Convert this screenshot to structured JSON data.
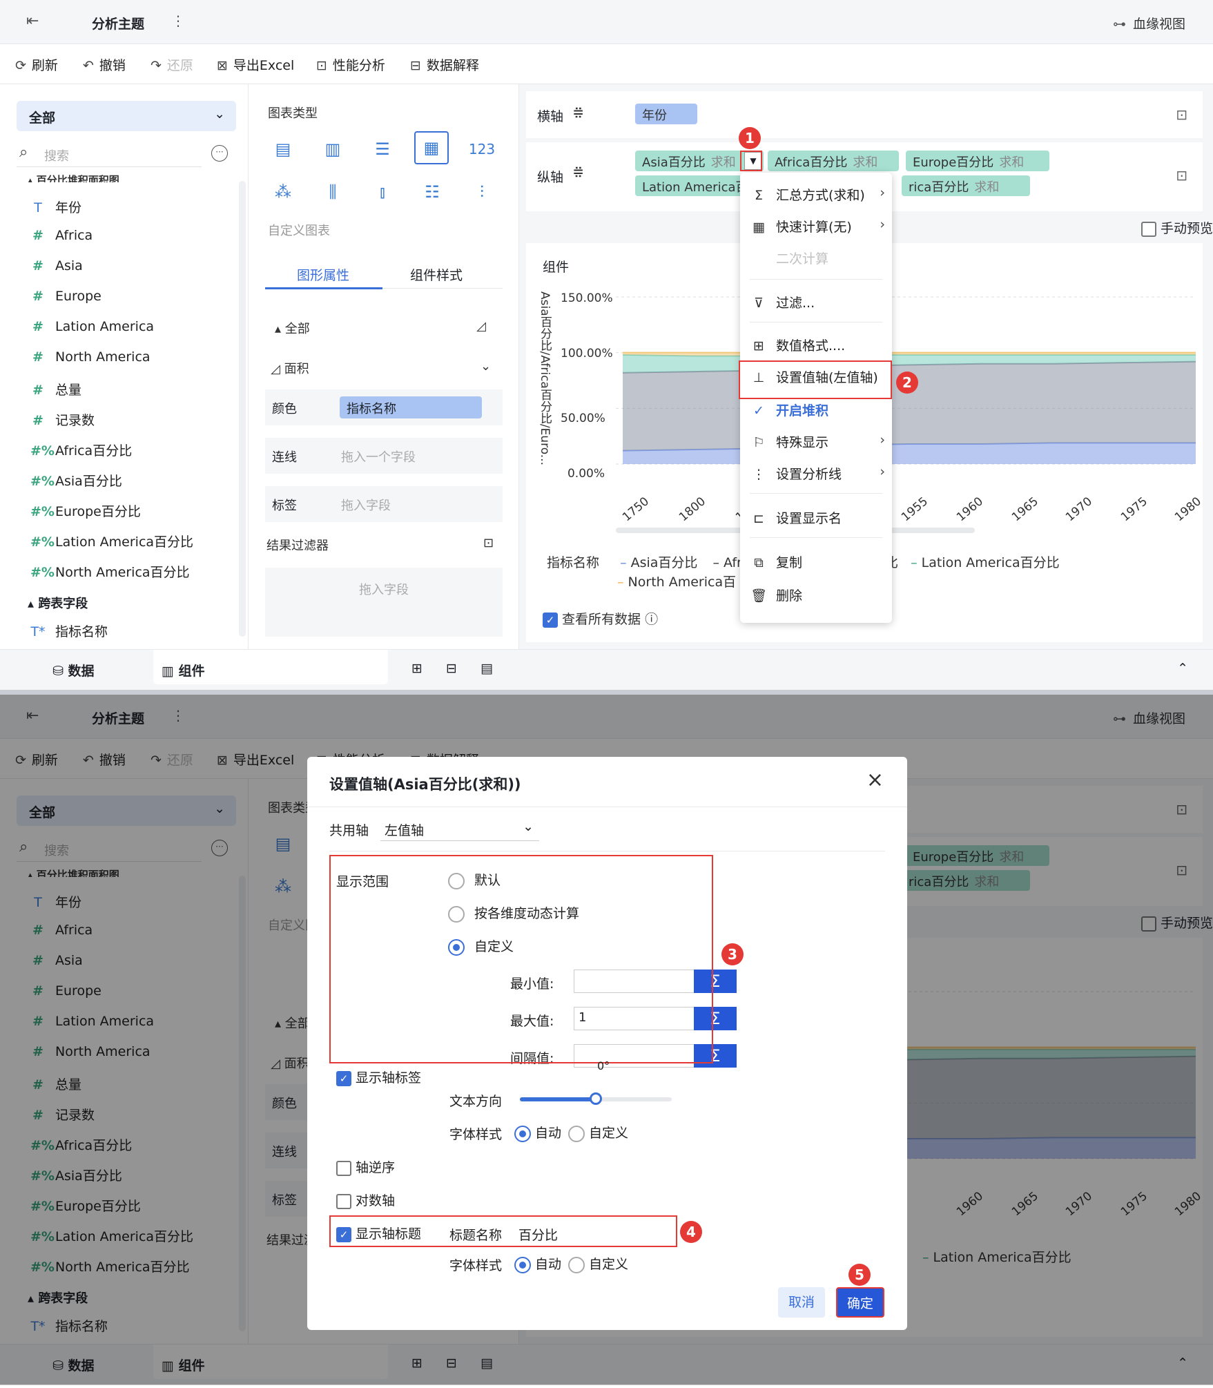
{
  "header": {
    "title": "分析主题",
    "lineage": "血缘视图"
  },
  "toolbar": {
    "refresh": "刷新",
    "undo": "撤销",
    "redo": "还原",
    "export": "导出Excel",
    "perf": "性能分析",
    "explain": "数据解释"
  },
  "left": {
    "select": "全部",
    "search_placeholder": "搜索",
    "partial_top": "百分比堆积面积图",
    "fields": [
      {
        "icon": "T",
        "label": "年份"
      },
      {
        "icon": "#",
        "label": "Africa"
      },
      {
        "icon": "#",
        "label": "Asia"
      },
      {
        "icon": "#",
        "label": "Europe"
      },
      {
        "icon": "#",
        "label": "Lation America"
      },
      {
        "icon": "#",
        "label": "North America"
      },
      {
        "icon": "#",
        "label": "总量"
      },
      {
        "icon": "#",
        "label": "记录数"
      },
      {
        "icon": "%",
        "label": "Africa百分比"
      },
      {
        "icon": "%",
        "label": "Asia百分比"
      },
      {
        "icon": "%",
        "label": "Europe百分比"
      },
      {
        "icon": "%",
        "label": "Lation America百分比"
      },
      {
        "icon": "%",
        "label": "North America百分比"
      }
    ],
    "cross_group": "跨表字段",
    "cross_field": "指标名称"
  },
  "mid": {
    "chart_type_label": "图表类型",
    "custom_chart": "自定义图表",
    "tab_shape": "图形属性",
    "tab_style": "组件样式",
    "all": "全部",
    "area": "面积",
    "color_label": "颜色",
    "color_value": "指标名称",
    "line_label": "连线",
    "line_ph": "拖入一个字段",
    "tag_label": "标签",
    "tag_ph": "拖入字段",
    "filter_label": "结果过滤器",
    "filter_ph": "拖入字段"
  },
  "axis": {
    "x_label": "横轴",
    "x_field": "年份",
    "y_label": "纵轴",
    "y_fields": [
      "Asia百分比",
      "Africa百分比",
      "Europe百分比",
      "Lation America百",
      "rica百分比"
    ],
    "agg": "求和",
    "manual_preview": "手动预览"
  },
  "chart": {
    "component_title": "组件",
    "ylabel": "Asia百分比/Africa百分比/Euro...",
    "yticks": [
      "150.00%",
      "100.00%",
      "50.00%",
      "0.00%"
    ],
    "xticks": [
      "1750",
      "1800",
      "18",
      "1955",
      "1960",
      "1965",
      "1970",
      "1975",
      "1980"
    ],
    "legend_title": "指标名称",
    "legend_items": [
      "Asia百分比",
      "Afr",
      "比",
      "Lation America百分比",
      "North America百"
    ],
    "view_all": "查看所有数据"
  },
  "chart_data": {
    "type": "area",
    "x": [
      "1750",
      "1800",
      "18",
      "1955",
      "1960",
      "1965",
      "1970",
      "1975",
      "1980"
    ],
    "ylim": [
      0,
      1.5
    ],
    "yticks": [
      "150.00%",
      "100.00%",
      "50.00%",
      "0.00%"
    ],
    "ylabel": "Asia百分比/Africa百分比/Euro...",
    "series": [
      {
        "name": "Asia百分比",
        "values": [
          0.12,
          0.13,
          0.14,
          0.17,
          0.18,
          0.18,
          0.19,
          0.19,
          0.19
        ],
        "color": "#7f9be6"
      },
      {
        "name": "Lation America百分比",
        "values": [
          0.82,
          0.83,
          0.84,
          0.88,
          0.89,
          0.9,
          0.9,
          0.91,
          0.92
        ],
        "color": "#8c93a3"
      },
      {
        "name": "North America百分比",
        "values": [
          0.98,
          0.97,
          0.97,
          0.98,
          0.98,
          0.98,
          0.98,
          0.98,
          0.98
        ],
        "color": "#7fd1bf"
      },
      {
        "name": "Europe百分比",
        "values": [
          1.0,
          1.0,
          1.0,
          1.0,
          1.0,
          1.0,
          1.0,
          1.0,
          1.0
        ],
        "color": "#f3c77a"
      }
    ]
  },
  "menu": {
    "items": [
      "汇总方式(求和)",
      "快速计算(无)",
      "二次计算",
      "过滤...",
      "数值格式....",
      "设置值轴(左值轴)",
      "开启堆积",
      "特殊显示",
      "设置分析线",
      "设置显示名",
      "复制",
      "删除"
    ]
  },
  "badges": [
    "1",
    "2",
    "3",
    "4",
    "5"
  ],
  "bottom": {
    "data": "数据",
    "component": "组件"
  },
  "dialog": {
    "title": "设置值轴(Asia百分比(求和))",
    "shared_axis_label": "共用轴",
    "shared_axis_value": "左值轴",
    "range_label": "显示范围",
    "opt_default": "默认",
    "opt_dynamic": "按各维度动态计算",
    "opt_custom": "自定义",
    "min_label": "最小值:",
    "max_label": "最大值:",
    "max_value": "1",
    "step_label": "间隔值:",
    "show_axis_label": "显示轴标签",
    "degree": "0°",
    "text_dir": "文本方向",
    "slider_value": 0.5,
    "font_style": "字体样式",
    "auto": "自动",
    "custom": "自定义",
    "reverse": "轴逆序",
    "log": "对数轴",
    "show_title": "显示轴标题",
    "title_name_label": "标题名称",
    "title_name_value": "百分比",
    "cancel": "取消",
    "ok": "确定"
  }
}
